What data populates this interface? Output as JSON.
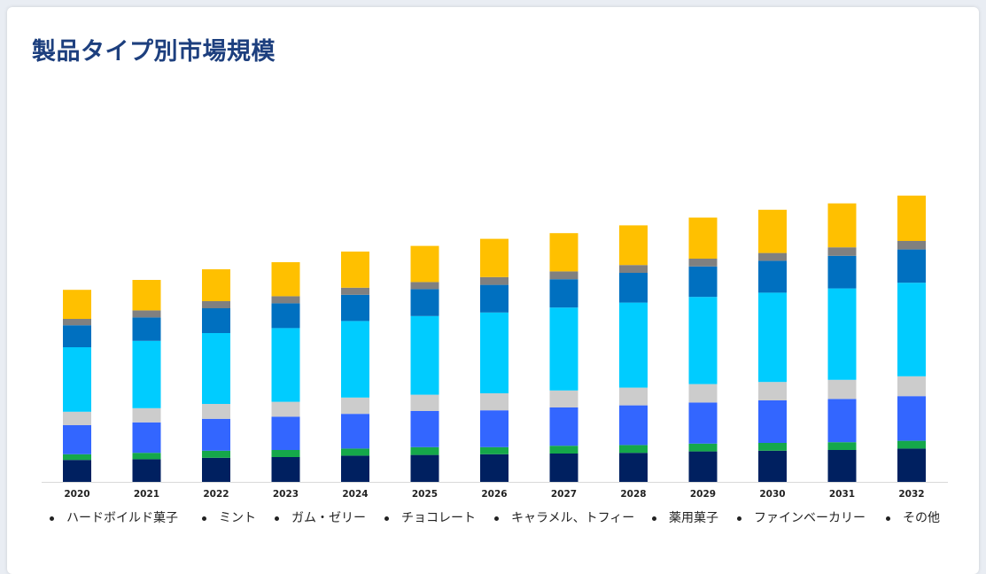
{
  "title": "製品タイプ別市場規模",
  "chart_data": {
    "type": "bar",
    "stacked": true,
    "title": "製品タイプ別市場規模",
    "xlabel": "",
    "ylabel": "",
    "categories": [
      "2020",
      "2021",
      "2022",
      "2023",
      "2024",
      "2025",
      "2026",
      "2027",
      "2028",
      "2029",
      "2030",
      "2031",
      "2032"
    ],
    "legend_position": "bottom",
    "grid": false,
    "series": [
      {
        "name": "ハードボイルド菓子",
        "color": "#002060",
        "values": [
          31,
          32,
          34,
          35,
          37,
          38,
          39,
          40,
          41,
          43,
          44,
          45,
          47
        ]
      },
      {
        "name": "ミント",
        "color": "#15a84a",
        "values": [
          8,
          9,
          10,
          10,
          10,
          11,
          10,
          11,
          11,
          11,
          11,
          11,
          11
        ]
      },
      {
        "name": "ガム・ゼリー",
        "color": "#3366ff",
        "values": [
          41,
          43,
          45,
          47,
          49,
          51,
          52,
          54,
          56,
          58,
          60,
          61,
          63
        ]
      },
      {
        "name": "チョコレート",
        "color": "#cccccc",
        "values": [
          19,
          20,
          21,
          21,
          23,
          23,
          24,
          24,
          25,
          26,
          26,
          27,
          28
        ]
      },
      {
        "name": "キャラメル、トフィー",
        "color": "#00ccff",
        "values": [
          91,
          95,
          100,
          104,
          108,
          111,
          114,
          117,
          120,
          123,
          126,
          129,
          132
        ]
      },
      {
        "name": "薬用菓子",
        "color": "#0070c0",
        "values": [
          31,
          33,
          35,
          35,
          37,
          38,
          39,
          40,
          42,
          43,
          45,
          46,
          47
        ]
      },
      {
        "name": "ファインベーカリー",
        "color": "#808080",
        "values": [
          9,
          10,
          10,
          10,
          10,
          10,
          11,
          11,
          11,
          11,
          11,
          12,
          12
        ]
      },
      {
        "name": "その他",
        "color": "#ffc000",
        "values": [
          41,
          43,
          45,
          48,
          51,
          51,
          54,
          54,
          56,
          58,
          61,
          62,
          64
        ]
      }
    ]
  }
}
